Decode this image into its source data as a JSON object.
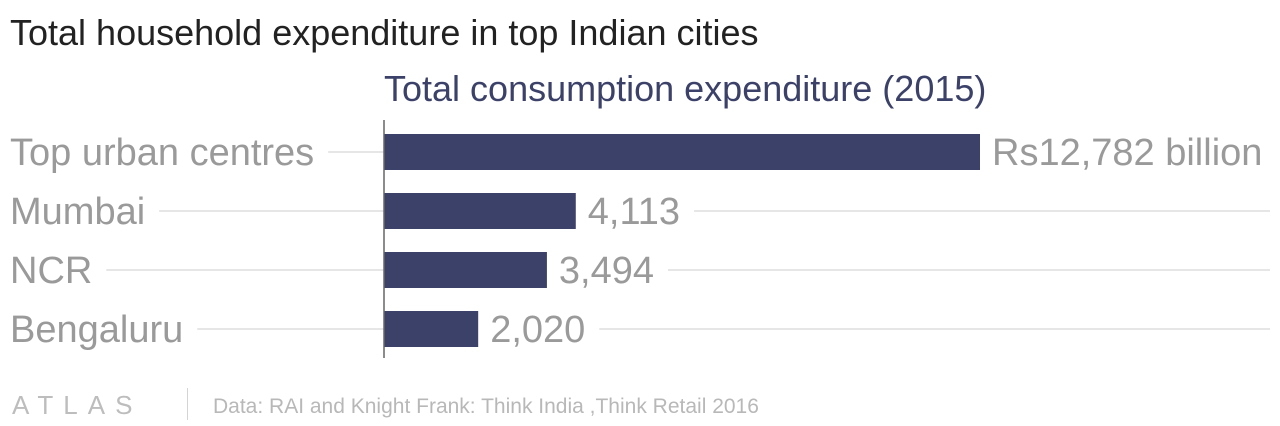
{
  "header": {
    "title": "Total household expenditure in top Indian cities"
  },
  "colors": {
    "bar": "#3b4168",
    "label": "#9a9a9a",
    "gridline": "#e6e6e6",
    "axis": "#666666"
  },
  "chart_data": {
    "type": "bar",
    "orientation": "horizontal",
    "title": "Total consumption expenditure (2015)",
    "categories": [
      "Top urban centres",
      "Mumbai",
      "NCR",
      "Bengaluru"
    ],
    "values": [
      12782,
      4113,
      3494,
      2020
    ],
    "value_labels": [
      "Rs12,782 billion",
      "4,113",
      "3,494",
      "2,020"
    ],
    "xlim": [
      0,
      12782
    ],
    "grid": true
  },
  "footer": {
    "logo": "ATLAS",
    "source": "Data: RAI and Knight Frank: Think India ,Think Retail 2016"
  }
}
